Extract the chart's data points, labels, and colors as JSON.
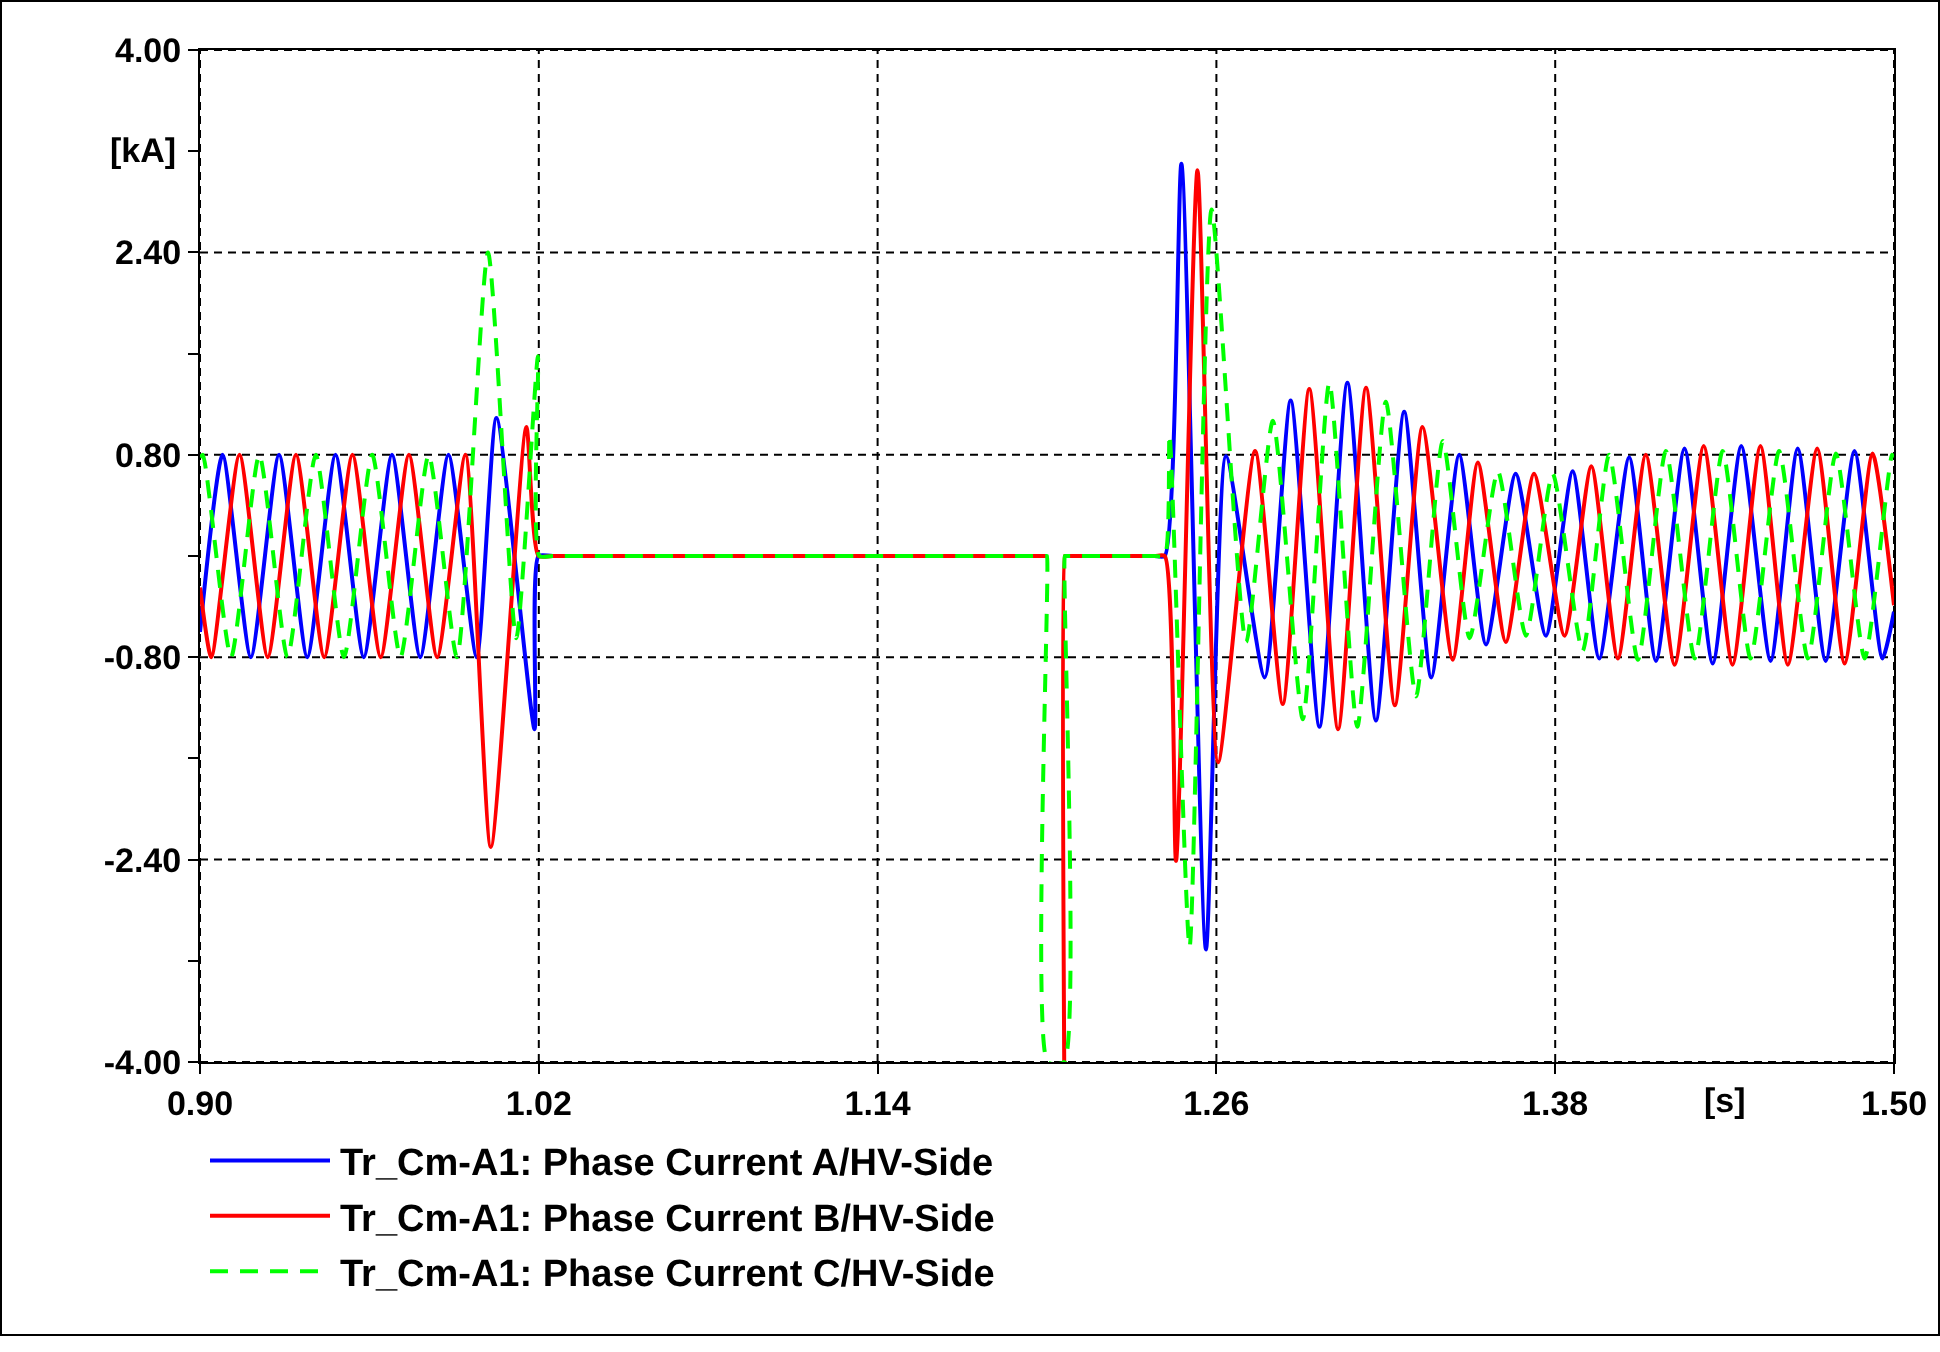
{
  "chart_data": {
    "type": "line",
    "xlabel": "[s]",
    "ylabel": "[kA]",
    "xlim": [
      0.9,
      1.5
    ],
    "xticks": [
      {
        "value": 0.9,
        "label": "0.90"
      },
      {
        "value": 1.02,
        "label": "1.02"
      },
      {
        "value": 1.14,
        "label": "1.14"
      },
      {
        "value": 1.26,
        "label": "1.26"
      },
      {
        "value": 1.38,
        "label": "1.38"
      },
      {
        "value": 1.5,
        "label": "1.50"
      }
    ],
    "ylim": [
      -4,
      4
    ],
    "yticks": [
      {
        "value": -4,
        "label": "-4.00"
      },
      {
        "value": -3.2,
        "label": null
      },
      {
        "value": -2.4,
        "label": "-2.40"
      },
      {
        "value": -1.6,
        "label": null
      },
      {
        "value": -0.8,
        "label": "-0.80"
      },
      {
        "value": 0,
        "label": null
      },
      {
        "value": 0.8,
        "label": "0.80"
      },
      {
        "value": 1.6,
        "label": null
      },
      {
        "value": 2.4,
        "label": "2.40"
      },
      {
        "value": 3.2,
        "label": null
      },
      {
        "value": 4,
        "label": "4.00"
      }
    ],
    "grid": true,
    "legend": "bottom",
    "marker": "none",
    "series": [
      {
        "name": "Tr_Cm-A1: Phase Current A/HV-Side",
        "color": "#0000ff",
        "line_style": "solid",
        "x": [
          0.9,
          0.908,
          0.918,
          0.928,
          0.938,
          0.948,
          0.958,
          0.968,
          0.978,
          0.988,
          0.998,
          1.005,
          1.0185,
          1.0199,
          1.025,
          1.195,
          1.1998,
          1.2,
          1.2002,
          1.2061,
          1.2063,
          1.2065,
          1.21,
          1.238,
          1.2417,
          1.2476,
          1.2563,
          1.2634,
          1.2771,
          1.2863,
          1.2965,
          1.3064,
          1.3165,
          1.3265,
          1.3361,
          1.346,
          1.3555,
          1.366,
          1.3767,
          1.3862,
          1.3956,
          1.4062,
          1.4157,
          1.4258,
          1.4358,
          1.4459,
          1.4563,
          1.4659,
          1.4758,
          1.486,
          1.4959,
          1.5
        ],
        "values": [
          -0.6,
          0.8,
          -0.8,
          0.8,
          -0.8,
          0.8,
          -0.8,
          0.8,
          -0.8,
          0.8,
          -0.8,
          1.09,
          -1.37,
          0,
          0,
          0,
          0,
          0,
          null,
          null,
          0,
          0,
          0,
          0,
          0,
          3.1,
          -3.11,
          0.79,
          -0.96,
          1.23,
          -1.35,
          1.37,
          -1.3,
          1.14,
          -0.96,
          0.8,
          -0.7,
          0.65,
          -0.63,
          0.67,
          -0.81,
          0.78,
          -0.83,
          0.85,
          -0.85,
          0.87,
          -0.83,
          0.85,
          -0.83,
          0.83,
          -0.81,
          -0.44
        ]
      },
      {
        "name": "Tr_Cm-A1: Phase Current B/HV-Side",
        "color": "#ff0000",
        "line_style": "solid",
        "x": [
          0.9,
          0.904,
          0.914,
          0.924,
          0.934,
          0.944,
          0.954,
          0.964,
          0.974,
          0.984,
          0.994,
          1.003,
          1.0156,
          1.0199,
          1.025,
          1.195,
          1.1998,
          1.2,
          1.2002,
          1.2061,
          1.2063,
          1.2065,
          1.21,
          1.238,
          1.2417,
          1.2457,
          1.2533,
          1.2606,
          1.2737,
          1.2835,
          1.2929,
          1.3031,
          1.313,
          1.3232,
          1.333,
          1.3437,
          1.3526,
          1.3625,
          1.3725,
          1.3833,
          1.3928,
          1.4022,
          1.4121,
          1.4223,
          1.4326,
          1.4428,
          1.4527,
          1.4624,
          1.4728,
          1.4825,
          1.4924,
          1.5
        ],
        "values": [
          -0.25,
          -0.8,
          0.8,
          -0.8,
          0.8,
          -0.8,
          0.8,
          -0.8,
          0.8,
          -0.8,
          0.8,
          -2.3,
          1.02,
          0,
          0,
          0,
          0,
          0,
          null,
          -4,
          0,
          0,
          0,
          0,
          0,
          -2.41,
          3.05,
          -1.63,
          0.83,
          -1.17,
          1.32,
          -1.37,
          1.33,
          -1.18,
          1.02,
          -0.82,
          0.74,
          -0.68,
          0.65,
          -0.63,
          0.71,
          -0.81,
          0.8,
          -0.86,
          0.87,
          -0.86,
          0.87,
          -0.86,
          0.85,
          -0.85,
          0.81,
          -0.39
        ]
      },
      {
        "name": "Tr_Cm-A1: Phase Current C/HV-Side",
        "color": "#00ff00",
        "line_style": "dashed",
        "x": [
          0.9,
          0.901,
          0.911,
          0.921,
          0.931,
          0.941,
          0.951,
          0.961,
          0.971,
          0.981,
          0.991,
          1.002,
          1.012,
          1.0197,
          1.0202,
          1.025,
          1.195,
          1.1998,
          1.2,
          1.2002,
          1.2061,
          1.2063,
          1.2065,
          1.21,
          1.238,
          1.2417,
          1.2434,
          1.2505,
          1.2583,
          1.2705,
          1.28,
          1.2906,
          1.3,
          1.3099,
          1.32,
          1.3307,
          1.3402,
          1.3497,
          1.3597,
          1.3696,
          1.3791,
          1.3897,
          1.3991,
          1.4093,
          1.4192,
          1.4294,
          1.4393,
          1.4492,
          1.4593,
          1.4695,
          1.4794,
          1.4896,
          1.4993,
          1.5
        ],
        "values": [
          0.78,
          0.8,
          -0.8,
          0.8,
          -0.8,
          0.8,
          -0.8,
          0.8,
          -0.8,
          0.8,
          -0.8,
          2.4,
          -0.65,
          1.58,
          0,
          0,
          0,
          0,
          0,
          -4,
          -4,
          0,
          0,
          0,
          0,
          0,
          0.96,
          -3.09,
          2.74,
          -0.68,
          1.07,
          -1.29,
          1.37,
          -1.35,
          1.22,
          -1.11,
          0.91,
          -0.65,
          0.67,
          -0.63,
          0.65,
          -0.75,
          0.8,
          -0.82,
          0.83,
          -0.81,
          0.83,
          -0.81,
          0.83,
          -0.81,
          0.81,
          -0.81,
          0.8,
          0.78
        ]
      }
    ]
  }
}
